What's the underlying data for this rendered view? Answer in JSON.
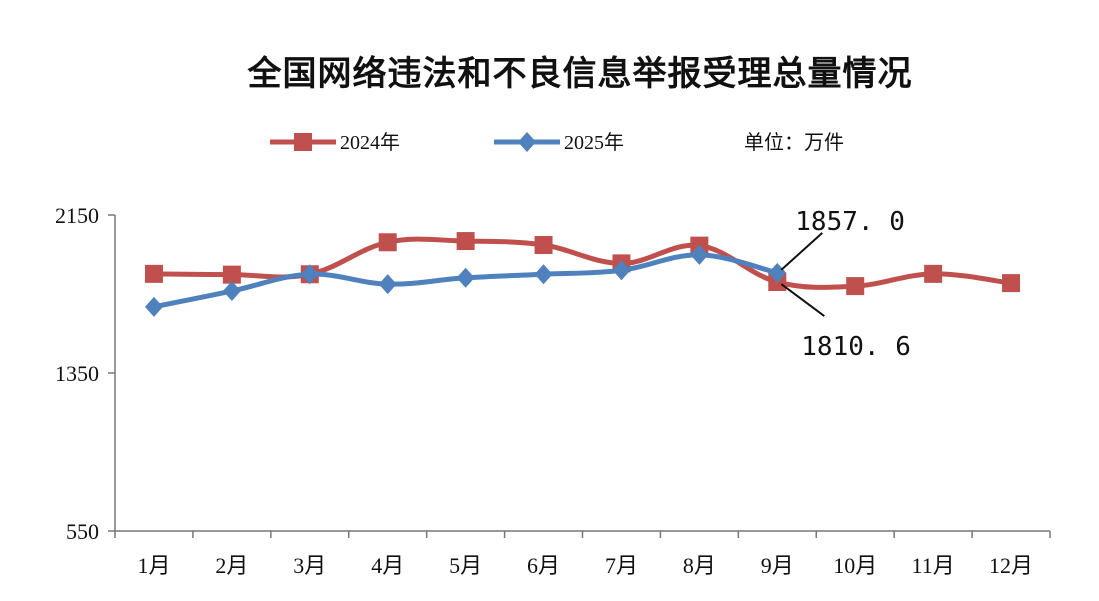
{
  "chart_data": {
    "type": "line",
    "title": "全国网络违法和不良信息举报受理总量情况",
    "unit_note": "单位：万件",
    "categories": [
      "1月",
      "2月",
      "3月",
      "4月",
      "5月",
      "6月",
      "7月",
      "8月",
      "9月",
      "10月",
      "11月",
      "12月"
    ],
    "ylim": [
      550,
      2150
    ],
    "yticks": [
      550,
      1350,
      2150
    ],
    "legend_position": "top",
    "grid": false,
    "series": [
      {
        "name": "2024年",
        "color": "#c0504d",
        "marker": "square",
        "values": [
          1852,
          1848,
          1850,
          2012,
          2018,
          1998,
          1905,
          1995,
          1810.6,
          1790,
          1852,
          1805
        ]
      },
      {
        "name": "2025年",
        "color": "#4f81bd",
        "marker": "diamond",
        "values": [
          1685,
          1765,
          1850,
          1800,
          1832,
          1850,
          1870,
          1948,
          1857.0,
          null,
          null,
          null
        ]
      }
    ],
    "annotations": [
      {
        "text": "1857. 0",
        "series": 1,
        "index": 8
      },
      {
        "text": "1810. 6",
        "series": 0,
        "index": 8
      }
    ]
  }
}
